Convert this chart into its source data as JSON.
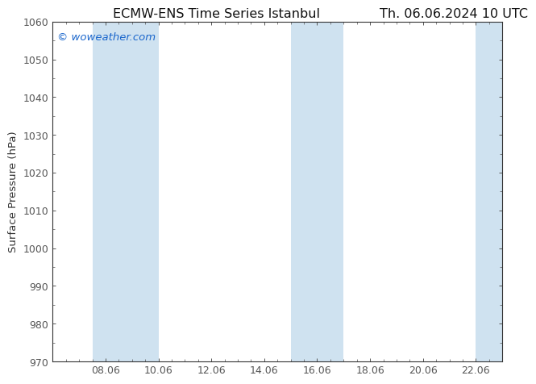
{
  "title_left": "ECMW-ENS Time Series Istanbul",
  "title_right": "Th. 06.06.2024 10 UTC",
  "ylabel": "Surface Pressure (hPa)",
  "ylim": [
    970,
    1060
  ],
  "yticks": [
    970,
    980,
    990,
    1000,
    1010,
    1020,
    1030,
    1040,
    1050,
    1060
  ],
  "xlim_start": 6.0,
  "xlim_end": 23.0,
  "xticks": [
    8.0,
    10.0,
    12.0,
    14.0,
    16.0,
    18.0,
    20.0,
    22.0
  ],
  "xticklabels": [
    "08.06",
    "10.06",
    "12.06",
    "14.06",
    "16.06",
    "18.06",
    "20.06",
    "22.06"
  ],
  "shaded_bands": [
    {
      "x_start": 7.5,
      "x_end": 10.0
    },
    {
      "x_start": 15.0,
      "x_end": 17.0
    },
    {
      "x_start": 22.0,
      "x_end": 23.0
    }
  ],
  "band_color": "#cfe2f0",
  "background_color": "#ffffff",
  "watermark_text": "© woweather.com",
  "watermark_color": "#1a66cc",
  "axis_color": "#333333",
  "tick_color": "#555555",
  "title_fontsize": 11.5,
  "ylabel_fontsize": 9.5,
  "tick_fontsize": 9,
  "watermark_fontsize": 9.5
}
